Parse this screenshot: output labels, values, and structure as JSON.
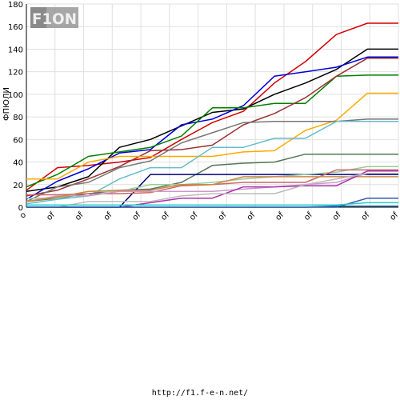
{
  "chart_data": {
    "type": "line",
    "title": "",
    "xlabel": "",
    "ylabel": "ФПЮЛИ",
    "ylim": [
      0,
      180
    ],
    "yticks": [
      0,
      20,
      40,
      60,
      80,
      100,
      120,
      140,
      160,
      180
    ],
    "x_tick_labels": [
      "o",
      "of",
      "of",
      "of",
      "of",
      "of",
      "of",
      "of",
      "of",
      "of",
      "of",
      "of",
      "of",
      "of"
    ],
    "grid": true,
    "legend": "none",
    "series": [
      {
        "color": "#d40000",
        "values": [
          15,
          35,
          37,
          40,
          44,
          60,
          75,
          85,
          110,
          129,
          153,
          163,
          163
        ]
      },
      {
        "color": "#000000",
        "values": [
          14,
          18,
          27,
          53,
          60,
          72,
          84,
          87,
          100,
          110,
          122,
          140,
          140
        ]
      },
      {
        "color": "#0000dd",
        "values": [
          7,
          23,
          34,
          48,
          51,
          73,
          78,
          90,
          116,
          120,
          124,
          133,
          133
        ]
      },
      {
        "color": "#008000",
        "values": [
          18,
          29,
          45,
          49,
          53,
          63,
          88,
          88,
          92,
          92,
          116,
          117,
          117
        ]
      },
      {
        "color": "#993333",
        "values": [
          10,
          15,
          25,
          36,
          50,
          51,
          55,
          73,
          83,
          97,
          116,
          132,
          132
        ]
      },
      {
        "color": "#ffaa00",
        "values": [
          25,
          25,
          40,
          45,
          45,
          45,
          45,
          49,
          50,
          68,
          77,
          101,
          101
        ]
      },
      {
        "color": "#777777",
        "values": [
          5,
          18,
          22,
          35,
          41,
          57,
          66,
          75,
          76,
          76,
          76,
          78,
          78
        ]
      },
      {
        "color": "#66bbcc",
        "values": [
          3,
          7,
          10,
          25,
          35,
          35,
          53,
          53,
          61,
          61,
          76,
          76,
          76
        ]
      },
      {
        "color": "#557755",
        "values": [
          5,
          8,
          12,
          15,
          16,
          22,
          37,
          39,
          40,
          47,
          47,
          47,
          47
        ]
      },
      {
        "color": "#000080",
        "values": [
          0,
          0,
          0,
          0,
          29,
          29,
          29,
          29,
          29,
          29,
          29,
          29,
          29
        ]
      },
      {
        "color": "#99cc99",
        "values": [
          8,
          8,
          14,
          14,
          20,
          20,
          22,
          25,
          27,
          29,
          31,
          36,
          36
        ]
      },
      {
        "color": "#cc6666",
        "values": [
          11,
          11,
          12,
          12,
          13,
          19,
          20,
          22,
          22,
          22,
          33,
          33,
          33
        ]
      },
      {
        "color": "#cc99cc",
        "values": [
          5,
          10,
          10,
          14,
          14,
          14,
          14,
          16,
          18,
          20,
          22,
          30,
          30
        ]
      },
      {
        "color": "#cc8844",
        "values": [
          5,
          9,
          14,
          15,
          15,
          20,
          20,
          27,
          27,
          27,
          27,
          27,
          27
        ]
      },
      {
        "color": "#aa33aa",
        "values": [
          0,
          0,
          0,
          0,
          4,
          8,
          8,
          18,
          18,
          19,
          19,
          32,
          32
        ]
      },
      {
        "color": "#bbbbbb",
        "values": [
          0,
          0,
          5,
          5,
          5,
          10,
          12,
          12,
          12,
          20,
          25,
          30,
          30
        ]
      },
      {
        "color": "#3355aa",
        "values": [
          0,
          0,
          0,
          0,
          0,
          0,
          0,
          0,
          0,
          0,
          0,
          8,
          8
        ]
      },
      {
        "color": "#22cccc",
        "values": [
          2,
          2,
          2,
          2,
          2,
          2,
          2,
          2,
          2,
          2,
          2,
          4,
          4
        ]
      },
      {
        "color": "#2266aa",
        "values": [
          0,
          0,
          0,
          0,
          0,
          0,
          0,
          0,
          0,
          0,
          1,
          1,
          1
        ]
      }
    ]
  },
  "logo": {
    "text": "F1ON"
  },
  "footer": {
    "url": "http://f1.f-e-n.net/"
  }
}
